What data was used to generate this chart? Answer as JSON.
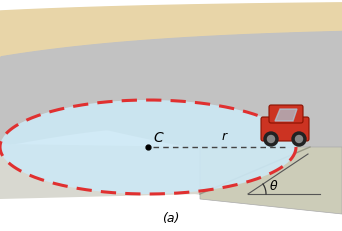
{
  "fig_width": 3.42,
  "fig_height": 2.32,
  "dpi": 100,
  "bg_color": "#ffffff",
  "tan_color": "#e8d5a8",
  "road_gray": "#c2c2c2",
  "road_light": "#d4d4d4",
  "bank_gray": "#c8c8c0",
  "ellipse_fill": "#cce8f5",
  "dashed_color": "#e03030",
  "label_C": "C",
  "label_r": "r",
  "label_theta": "θ",
  "label_a": "(a)"
}
